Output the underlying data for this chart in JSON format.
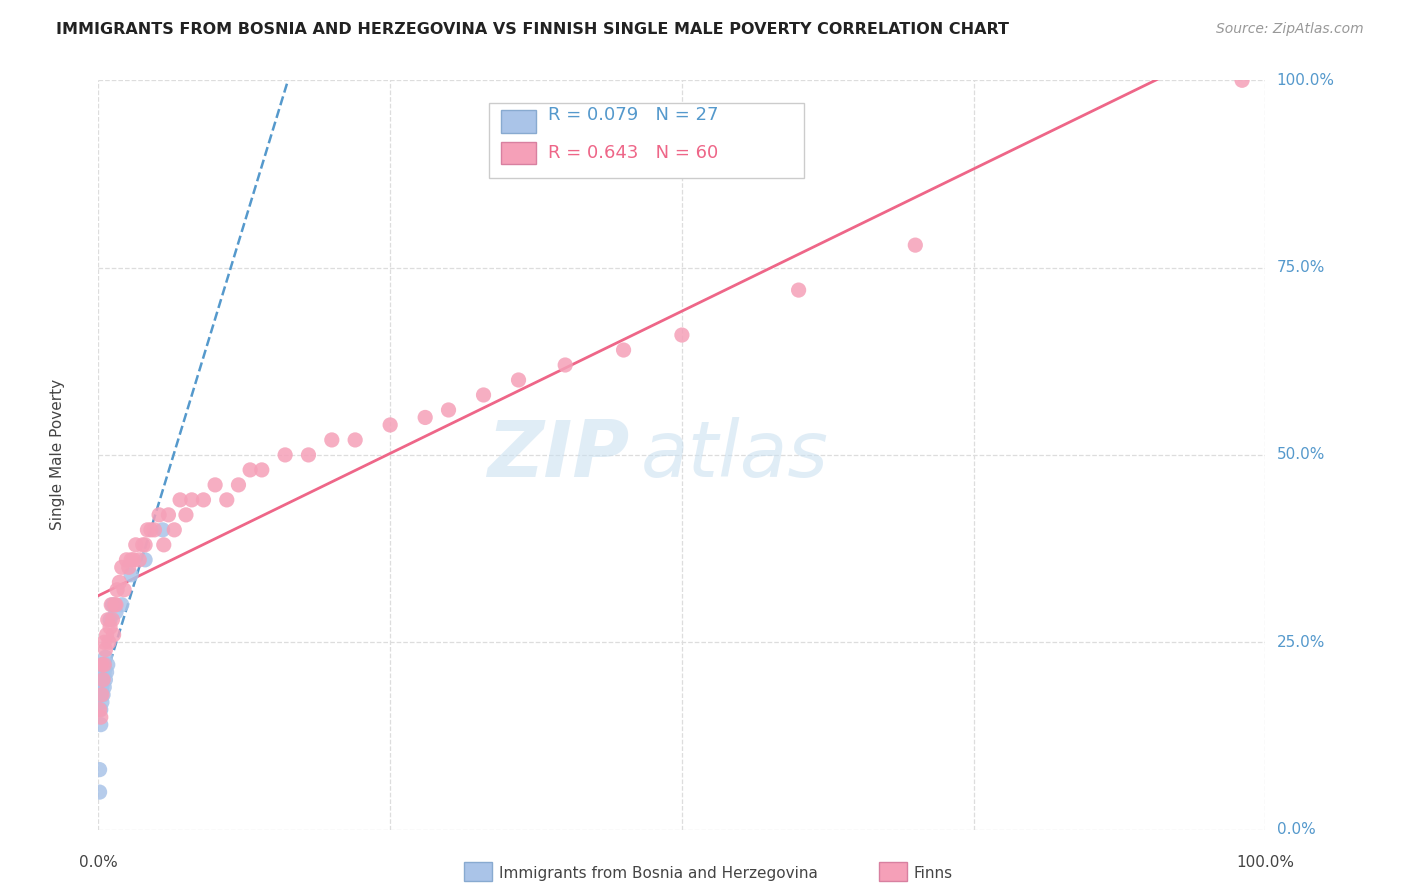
{
  "title": "IMMIGRANTS FROM BOSNIA AND HERZEGOVINA VS FINNISH SINGLE MALE POVERTY CORRELATION CHART",
  "source": "Source: ZipAtlas.com",
  "ylabel": "Single Male Poverty",
  "yticks": [
    "0.0%",
    "25.0%",
    "50.0%",
    "75.0%",
    "100.0%"
  ],
  "ytick_vals": [
    0.0,
    0.25,
    0.5,
    0.75,
    1.0
  ],
  "xtick_left": "0.0%",
  "xtick_right": "100.0%",
  "legend_bosnia_R": "R = 0.079",
  "legend_bosnia_N": "N = 27",
  "legend_finns_R": "R = 0.643",
  "legend_finns_N": "N = 60",
  "bosnia_color": "#aac4e8",
  "finns_color": "#f5a0b8",
  "bosnia_line_color": "#5599cc",
  "finns_line_color": "#ee6688",
  "watermark_zip": "ZIP",
  "watermark_atlas": "atlas",
  "background_color": "#ffffff",
  "grid_color": "#dddddd",
  "right_tick_color": "#5599cc",
  "bottom_tick_color": "#444444",
  "bos_x": [
    0.001,
    0.001,
    0.002,
    0.002,
    0.002,
    0.003,
    0.003,
    0.003,
    0.003,
    0.003,
    0.004,
    0.004,
    0.004,
    0.005,
    0.005,
    0.005,
    0.006,
    0.006,
    0.007,
    0.008,
    0.01,
    0.012,
    0.015,
    0.02,
    0.028,
    0.04,
    0.055
  ],
  "bos_y": [
    0.05,
    0.08,
    0.14,
    0.16,
    0.18,
    0.17,
    0.19,
    0.2,
    0.21,
    0.22,
    0.18,
    0.2,
    0.22,
    0.19,
    0.21,
    0.22,
    0.2,
    0.23,
    0.21,
    0.22,
    0.28,
    0.3,
    0.29,
    0.3,
    0.34,
    0.36,
    0.4
  ],
  "fin_x": [
    0.001,
    0.002,
    0.003,
    0.003,
    0.004,
    0.005,
    0.005,
    0.006,
    0.007,
    0.008,
    0.009,
    0.01,
    0.011,
    0.012,
    0.013,
    0.014,
    0.015,
    0.016,
    0.018,
    0.02,
    0.022,
    0.024,
    0.026,
    0.028,
    0.03,
    0.032,
    0.035,
    0.038,
    0.04,
    0.042,
    0.045,
    0.048,
    0.052,
    0.056,
    0.06,
    0.065,
    0.07,
    0.075,
    0.08,
    0.09,
    0.1,
    0.11,
    0.12,
    0.13,
    0.14,
    0.16,
    0.18,
    0.2,
    0.22,
    0.25,
    0.28,
    0.3,
    0.33,
    0.36,
    0.4,
    0.45,
    0.5,
    0.6,
    0.7,
    0.98
  ],
  "fin_y": [
    0.16,
    0.15,
    0.22,
    0.18,
    0.2,
    0.22,
    0.25,
    0.24,
    0.26,
    0.28,
    0.25,
    0.27,
    0.3,
    0.28,
    0.26,
    0.3,
    0.3,
    0.32,
    0.33,
    0.35,
    0.32,
    0.36,
    0.35,
    0.36,
    0.36,
    0.38,
    0.36,
    0.38,
    0.38,
    0.4,
    0.4,
    0.4,
    0.42,
    0.38,
    0.42,
    0.4,
    0.44,
    0.42,
    0.44,
    0.44,
    0.46,
    0.44,
    0.46,
    0.48,
    0.48,
    0.5,
    0.5,
    0.52,
    0.52,
    0.54,
    0.55,
    0.56,
    0.58,
    0.6,
    0.62,
    0.64,
    0.66,
    0.72,
    0.78,
    1.0
  ]
}
